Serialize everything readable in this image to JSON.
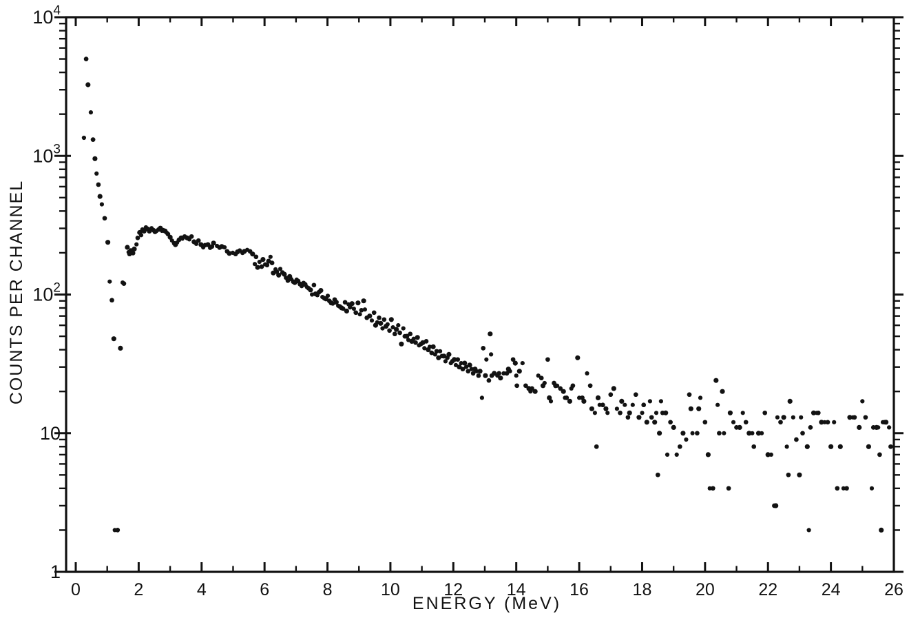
{
  "figure": {
    "background_color": "#ffffff",
    "ink_color": "#121212"
  },
  "chart_data": {
    "type": "scatter",
    "title": "",
    "xlabel": "ENERGY (MeV)",
    "ylabel": "COUNTS PER CHANNEL",
    "x_scale": "linear",
    "y_scale": "log",
    "xlim": [
      0,
      26
    ],
    "ylim": [
      1,
      10000
    ],
    "grid": false,
    "legend": "none",
    "marker": "dot",
    "x_major_ticks": [
      0,
      2,
      4,
      6,
      8,
      10,
      12,
      14,
      16,
      18,
      20,
      22,
      24,
      26
    ],
    "x_minor_ticks": [
      1,
      3,
      5,
      7,
      9,
      11,
      13,
      15,
      17,
      19,
      21,
      23,
      25
    ],
    "x_tick_labels": [
      "0",
      "2",
      "4",
      "6",
      "8",
      "10",
      "12",
      "14",
      "16",
      "18",
      "20",
      "22",
      "24",
      "26"
    ],
    "y_major_ticks": [
      1,
      10,
      100,
      1000,
      10000
    ],
    "y_tick_labels": [
      {
        "base": "1",
        "exp": ""
      },
      {
        "base": "10",
        "exp": ""
      },
      {
        "base": "10",
        "exp": "2"
      },
      {
        "base": "10",
        "exp": "3"
      },
      {
        "base": "10",
        "exp": "4"
      }
    ],
    "y_minor_tick_multiples": [
      2,
      3,
      4,
      5,
      6,
      7,
      8,
      9
    ],
    "points": [
      [
        0.26,
        1350
      ],
      [
        0.33,
        5000
      ],
      [
        0.39,
        3260
      ],
      [
        0.48,
        2060
      ],
      [
        0.55,
        1310
      ],
      [
        0.61,
        955
      ],
      [
        0.66,
        746
      ],
      [
        0.72,
        620
      ],
      [
        0.77,
        510
      ],
      [
        0.83,
        447
      ],
      [
        0.92,
        355
      ],
      [
        1.02,
        238
      ],
      [
        1.08,
        124
      ],
      [
        1.15,
        91
      ],
      [
        1.21,
        48
      ],
      [
        1.24,
        2
      ],
      [
        1.33,
        2
      ],
      [
        1.42,
        41
      ],
      [
        1.49,
        122
      ],
      [
        1.53,
        120
      ],
      [
        1.64,
        219
      ],
      [
        1.68,
        202
      ],
      [
        1.71,
        196
      ],
      [
        1.75,
        207
      ],
      [
        1.79,
        208
      ],
      [
        1.82,
        199
      ],
      [
        1.86,
        213
      ],
      [
        1.93,
        230
      ],
      [
        1.97,
        256
      ],
      [
        2.03,
        280
      ],
      [
        2.08,
        268
      ],
      [
        2.12,
        294
      ],
      [
        2.17,
        287
      ],
      [
        2.23,
        305
      ],
      [
        2.28,
        298
      ],
      [
        2.34,
        287
      ],
      [
        2.41,
        301
      ],
      [
        2.47,
        291
      ],
      [
        2.52,
        284
      ],
      [
        2.56,
        287
      ],
      [
        2.63,
        294
      ],
      [
        2.69,
        301
      ],
      [
        2.74,
        288
      ],
      [
        2.78,
        291
      ],
      [
        2.84,
        287
      ],
      [
        2.89,
        279
      ],
      [
        2.93,
        273
      ],
      [
        3.0,
        259
      ],
      [
        3.06,
        245
      ],
      [
        3.13,
        234
      ],
      [
        3.17,
        229
      ],
      [
        3.22,
        237
      ],
      [
        3.28,
        248
      ],
      [
        3.35,
        256
      ],
      [
        3.39,
        253
      ],
      [
        3.46,
        262
      ],
      [
        3.54,
        256
      ],
      [
        3.61,
        250
      ],
      [
        3.68,
        262
      ],
      [
        3.76,
        240
      ],
      [
        3.83,
        232
      ],
      [
        3.9,
        245
      ],
      [
        3.98,
        229
      ],
      [
        4.05,
        219
      ],
      [
        4.11,
        227
      ],
      [
        4.2,
        229
      ],
      [
        4.27,
        217
      ],
      [
        4.33,
        222
      ],
      [
        4.38,
        235
      ],
      [
        4.49,
        224
      ],
      [
        4.57,
        218
      ],
      [
        4.64,
        222
      ],
      [
        4.73,
        219
      ],
      [
        4.81,
        205
      ],
      [
        4.88,
        198
      ],
      [
        4.99,
        200
      ],
      [
        5.08,
        196
      ],
      [
        5.14,
        203
      ],
      [
        5.21,
        208
      ],
      [
        5.3,
        200
      ],
      [
        5.36,
        205
      ],
      [
        5.45,
        210
      ],
      [
        5.54,
        205
      ],
      [
        5.62,
        196
      ],
      [
        5.69,
        166
      ],
      [
        5.73,
        187
      ],
      [
        5.78,
        157
      ],
      [
        5.84,
        172
      ],
      [
        5.91,
        159
      ],
      [
        5.95,
        179
      ],
      [
        6.02,
        165
      ],
      [
        6.08,
        163
      ],
      [
        6.13,
        174
      ],
      [
        6.19,
        187
      ],
      [
        6.24,
        169
      ],
      [
        6.28,
        143
      ],
      [
        6.35,
        152
      ],
      [
        6.39,
        146
      ],
      [
        6.45,
        138
      ],
      [
        6.5,
        153
      ],
      [
        6.57,
        144
      ],
      [
        6.63,
        140
      ],
      [
        6.68,
        132
      ],
      [
        6.74,
        126
      ],
      [
        6.8,
        135
      ],
      [
        6.85,
        129
      ],
      [
        6.91,
        124
      ],
      [
        6.96,
        122
      ],
      [
        7.02,
        128
      ],
      [
        7.07,
        125
      ],
      [
        7.13,
        119
      ],
      [
        7.18,
        115
      ],
      [
        7.24,
        121
      ],
      [
        7.29,
        118
      ],
      [
        7.35,
        113
      ],
      [
        7.4,
        111
      ],
      [
        7.46,
        108
      ],
      [
        7.51,
        100
      ],
      [
        7.57,
        117
      ],
      [
        7.62,
        101
      ],
      [
        7.68,
        99
      ],
      [
        7.73,
        104
      ],
      [
        7.79,
        107
      ],
      [
        7.84,
        96
      ],
      [
        7.9,
        94
      ],
      [
        7.95,
        93
      ],
      [
        8.01,
        98
      ],
      [
        8.06,
        90
      ],
      [
        8.12,
        87
      ],
      [
        8.17,
        86
      ],
      [
        8.23,
        92
      ],
      [
        8.28,
        88
      ],
      [
        8.34,
        83
      ],
      [
        8.39,
        82
      ],
      [
        8.45,
        80
      ],
      [
        8.5,
        79
      ],
      [
        8.56,
        88
      ],
      [
        8.61,
        76
      ],
      [
        8.67,
        85
      ],
      [
        8.72,
        81
      ],
      [
        8.78,
        86
      ],
      [
        8.84,
        79
      ],
      [
        8.9,
        74
      ],
      [
        8.97,
        87
      ],
      [
        9.03,
        72
      ],
      [
        9.08,
        77
      ],
      [
        9.15,
        90
      ],
      [
        9.19,
        78
      ],
      [
        9.25,
        68
      ],
      [
        9.34,
        70
      ],
      [
        9.41,
        65
      ],
      [
        9.48,
        74
      ],
      [
        9.53,
        60
      ],
      [
        9.58,
        63
      ],
      [
        9.64,
        68
      ],
      [
        9.69,
        62
      ],
      [
        9.75,
        57
      ],
      [
        9.8,
        66
      ],
      [
        9.86,
        59
      ],
      [
        9.91,
        61
      ],
      [
        9.97,
        55
      ],
      [
        10.03,
        66
      ],
      [
        10.08,
        58
      ],
      [
        10.14,
        52
      ],
      [
        10.19,
        56
      ],
      [
        10.25,
        60
      ],
      [
        10.3,
        53
      ],
      [
        10.35,
        44
      ],
      [
        10.41,
        57
      ],
      [
        10.46,
        50
      ],
      [
        10.52,
        50
      ],
      [
        10.57,
        47
      ],
      [
        10.63,
        52
      ],
      [
        10.68,
        46
      ],
      [
        10.74,
        48
      ],
      [
        10.8,
        45
      ],
      [
        10.86,
        49
      ],
      [
        10.91,
        43
      ],
      [
        10.97,
        44
      ],
      [
        11.03,
        45
      ],
      [
        11.08,
        41
      ],
      [
        11.14,
        46
      ],
      [
        11.2,
        40
      ],
      [
        11.25,
        42
      ],
      [
        11.31,
        38
      ],
      [
        11.36,
        42
      ],
      [
        11.42,
        37
      ],
      [
        11.47,
        39
      ],
      [
        11.53,
        35
      ],
      [
        11.58,
        39
      ],
      [
        11.64,
        36
      ],
      [
        11.7,
        36
      ],
      [
        11.75,
        33
      ],
      [
        11.81,
        35
      ],
      [
        11.86,
        37
      ],
      [
        11.92,
        32
      ],
      [
        11.97,
        33
      ],
      [
        12.03,
        34
      ],
      [
        12.08,
        31
      ],
      [
        12.14,
        34
      ],
      [
        12.19,
        30
      ],
      [
        12.25,
        32
      ],
      [
        12.3,
        29
      ],
      [
        12.36,
        32
      ],
      [
        12.41,
        30
      ],
      [
        12.47,
        28
      ],
      [
        12.52,
        31
      ],
      [
        12.58,
        29
      ],
      [
        12.63,
        27
      ],
      [
        12.69,
        29
      ],
      [
        12.74,
        28
      ],
      [
        12.8,
        26
      ],
      [
        12.85,
        28
      ],
      [
        12.91,
        18
      ],
      [
        12.95,
        41
      ],
      [
        13.02,
        26
      ],
      [
        13.05,
        34
      ],
      [
        13.13,
        24
      ],
      [
        13.17,
        52
      ],
      [
        13.2,
        37
      ],
      [
        13.22,
        26
      ],
      [
        13.3,
        27
      ],
      [
        13.4,
        26
      ],
      [
        13.45,
        27
      ],
      [
        13.5,
        25
      ],
      [
        13.6,
        27
      ],
      [
        13.7,
        27
      ],
      [
        13.75,
        29
      ],
      [
        13.8,
        28
      ],
      [
        13.9,
        34
      ],
      [
        13.97,
        32
      ],
      [
        14.0,
        26
      ],
      [
        14.02,
        22
      ],
      [
        14.1,
        28
      ],
      [
        14.2,
        32
      ],
      [
        14.3,
        22
      ],
      [
        14.4,
        21
      ],
      [
        14.45,
        20
      ],
      [
        14.5,
        21
      ],
      [
        14.6,
        20
      ],
      [
        14.7,
        26
      ],
      [
        14.8,
        25
      ],
      [
        14.85,
        22
      ],
      [
        14.9,
        23
      ],
      [
        15.0,
        34
      ],
      [
        15.05,
        18
      ],
      [
        15.1,
        17
      ],
      [
        15.2,
        23
      ],
      [
        15.25,
        22
      ],
      [
        15.3,
        22
      ],
      [
        15.4,
        21
      ],
      [
        15.5,
        20
      ],
      [
        15.55,
        18
      ],
      [
        15.6,
        18
      ],
      [
        15.7,
        17
      ],
      [
        15.75,
        21
      ],
      [
        15.8,
        22
      ],
      [
        15.95,
        35
      ],
      [
        16.0,
        18
      ],
      [
        16.1,
        18
      ],
      [
        16.15,
        17
      ],
      [
        16.25,
        27
      ],
      [
        16.35,
        22
      ],
      [
        16.4,
        15
      ],
      [
        16.5,
        14
      ],
      [
        16.55,
        8
      ],
      [
        16.6,
        18
      ],
      [
        16.65,
        16
      ],
      [
        16.75,
        16
      ],
      [
        16.85,
        15
      ],
      [
        16.9,
        14
      ],
      [
        17.0,
        19
      ],
      [
        17.1,
        21
      ],
      [
        17.2,
        15
      ],
      [
        17.3,
        14
      ],
      [
        17.35,
        17
      ],
      [
        17.45,
        16
      ],
      [
        17.55,
        13
      ],
      [
        17.6,
        14
      ],
      [
        17.7,
        16
      ],
      [
        17.8,
        19
      ],
      [
        17.9,
        13
      ],
      [
        18.0,
        14
      ],
      [
        18.05,
        16
      ],
      [
        18.15,
        12
      ],
      [
        18.25,
        17
      ],
      [
        18.3,
        13
      ],
      [
        18.4,
        12
      ],
      [
        18.45,
        14
      ],
      [
        18.5,
        5
      ],
      [
        18.55,
        10
      ],
      [
        18.6,
        17
      ],
      [
        18.65,
        14
      ],
      [
        18.75,
        14
      ],
      [
        18.8,
        7
      ],
      [
        18.9,
        12
      ],
      [
        19.0,
        11
      ],
      [
        19.1,
        7
      ],
      [
        19.2,
        8
      ],
      [
        19.3,
        10
      ],
      [
        19.4,
        9
      ],
      [
        19.5,
        19
      ],
      [
        19.55,
        15
      ],
      [
        19.6,
        10
      ],
      [
        19.75,
        10
      ],
      [
        19.8,
        15
      ],
      [
        19.85,
        18
      ],
      [
        20.0,
        12
      ],
      [
        20.1,
        7
      ],
      [
        20.15,
        4
      ],
      [
        20.25,
        4
      ],
      [
        20.35,
        24
      ],
      [
        20.4,
        16
      ],
      [
        20.45,
        10
      ],
      [
        20.55,
        20
      ],
      [
        20.6,
        10
      ],
      [
        20.75,
        4
      ],
      [
        20.8,
        14
      ],
      [
        20.9,
        12
      ],
      [
        21.0,
        11
      ],
      [
        21.1,
        11
      ],
      [
        21.2,
        14
      ],
      [
        21.3,
        12
      ],
      [
        21.4,
        10
      ],
      [
        21.5,
        10
      ],
      [
        21.55,
        8
      ],
      [
        21.7,
        10
      ],
      [
        21.8,
        10
      ],
      [
        21.9,
        14
      ],
      [
        22.0,
        7
      ],
      [
        22.1,
        7
      ],
      [
        22.2,
        3
      ],
      [
        22.25,
        3
      ],
      [
        22.3,
        13
      ],
      [
        22.4,
        12
      ],
      [
        22.5,
        13
      ],
      [
        22.6,
        8
      ],
      [
        22.65,
        5
      ],
      [
        22.7,
        17
      ],
      [
        22.8,
        13
      ],
      [
        22.9,
        9
      ],
      [
        23.0,
        5
      ],
      [
        23.05,
        13
      ],
      [
        23.1,
        10
      ],
      [
        23.25,
        8
      ],
      [
        23.3,
        2
      ],
      [
        23.35,
        11
      ],
      [
        23.45,
        14
      ],
      [
        23.55,
        14
      ],
      [
        23.6,
        14
      ],
      [
        23.7,
        12
      ],
      [
        23.8,
        12
      ],
      [
        23.9,
        12
      ],
      [
        24.0,
        8
      ],
      [
        24.1,
        12
      ],
      [
        24.2,
        4
      ],
      [
        24.3,
        8
      ],
      [
        24.4,
        4
      ],
      [
        24.5,
        4
      ],
      [
        24.6,
        13
      ],
      [
        24.7,
        13
      ],
      [
        24.75,
        13
      ],
      [
        24.9,
        11
      ],
      [
        25.0,
        17
      ],
      [
        25.1,
        13
      ],
      [
        25.2,
        8
      ],
      [
        25.3,
        4
      ],
      [
        25.35,
        11
      ],
      [
        25.45,
        11
      ],
      [
        25.5,
        11
      ],
      [
        25.55,
        7
      ],
      [
        25.6,
        2
      ],
      [
        25.65,
        12
      ],
      [
        25.7,
        12
      ],
      [
        25.75,
        12
      ],
      [
        25.85,
        11
      ],
      [
        25.9,
        8
      ]
    ]
  }
}
